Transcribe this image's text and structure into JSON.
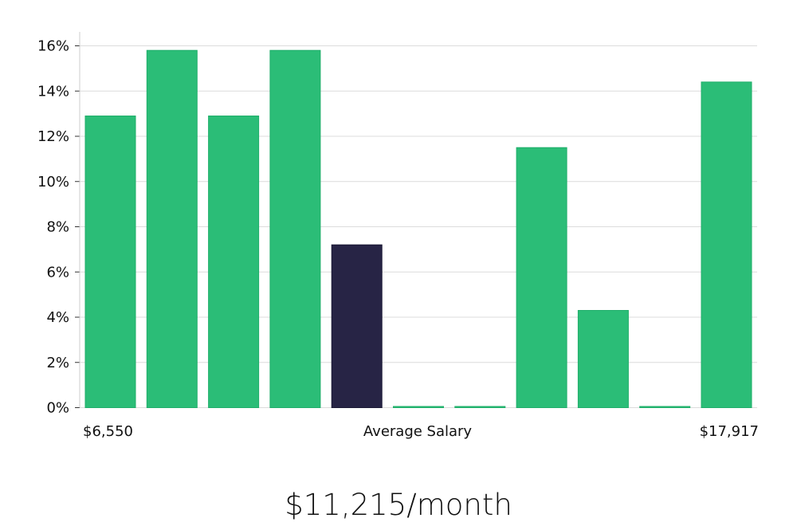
{
  "chart_data": {
    "type": "bar",
    "y_unit": "%",
    "ylim": [
      0,
      16
    ],
    "y_ticks": [
      0,
      2,
      4,
      6,
      8,
      10,
      12,
      14,
      16
    ],
    "y_tick_labels": [
      "0%",
      "2%",
      "4%",
      "6%",
      "8%",
      "10%",
      "12%",
      "14%",
      "16%"
    ],
    "grid": true,
    "x_labels": {
      "left": "$6,550",
      "center": "Average Salary",
      "right": "$17,917"
    },
    "values": [
      12.9,
      15.8,
      12.9,
      15.8,
      7.2,
      0,
      0,
      11.5,
      4.3,
      0,
      14.4
    ],
    "highlight_index": 4,
    "colors": {
      "bar": "#2bbd77",
      "bar_edge": "#1fae6a",
      "highlight": "#272445",
      "grid": "#dcdcdc",
      "axis": "#cccccc"
    }
  },
  "summary": {
    "average_text": "$11,215/month"
  }
}
